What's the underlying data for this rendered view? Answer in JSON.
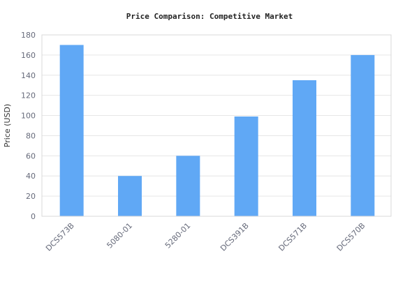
{
  "chart_data": {
    "type": "bar",
    "title": "Price Comparison: Competitive Market",
    "xlabel": "",
    "ylabel": "Price (USD)",
    "categories": [
      "DCS573B",
      "5080-01",
      "5280-01",
      "DCS391B",
      "DCS571B",
      "DCS570B"
    ],
    "values": [
      170,
      40,
      60,
      99,
      135,
      160
    ],
    "ylim": [
      0,
      180
    ],
    "yticks": [
      0,
      20,
      40,
      60,
      80,
      100,
      120,
      140,
      160,
      180
    ],
    "grid": true,
    "legend": "none",
    "colors": {
      "bar": "#60a8f5",
      "grid": "#e6e6e6",
      "axis": "#d9d9d9"
    }
  }
}
